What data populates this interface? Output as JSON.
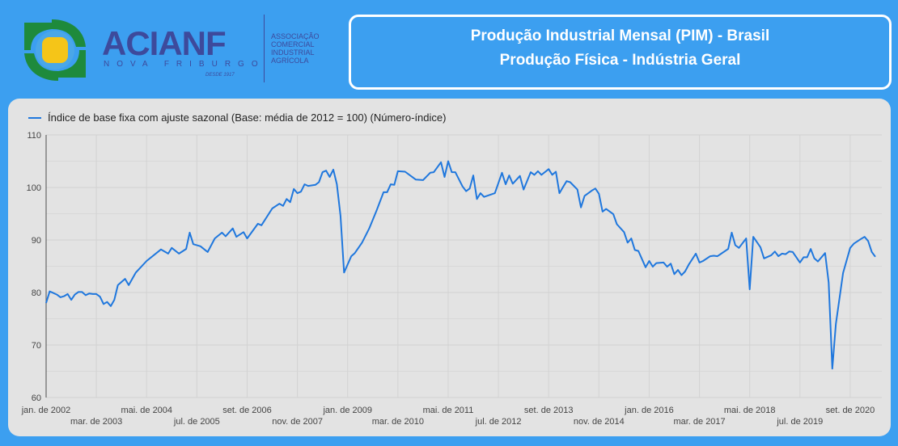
{
  "brand": {
    "name": "ACIANF",
    "city": "NOVA FRIBURGO",
    "since": "DESDE 1917",
    "tagline": [
      "ASSOCIAÇÃO",
      "COMERCIAL",
      "INDUSTRIAL",
      "AGRÍCOLA"
    ],
    "colors": {
      "green": "#1e8a3c",
      "yellow": "#f5c518",
      "navy": "#3d4a9c"
    }
  },
  "header": {
    "title_line1": "Produção Industrial Mensal (PIM) - Brasil",
    "title_line2": "Produção Física - Indústria Geral"
  },
  "chart_data": {
    "type": "line",
    "title": "",
    "legend": "Índice de base fixa com ajuste sazonal (Base: média de 2012 = 100) (Número-índice)",
    "legend_position": "top-left",
    "x_unit": "months since jan. de 2002",
    "xlim": [
      0,
      231
    ],
    "ylim": [
      60,
      110
    ],
    "y_ticks": [
      60,
      70,
      80,
      90,
      100,
      110
    ],
    "x_ticks": [
      {
        "x": 0,
        "label": "jan. de 2002"
      },
      {
        "x": 14,
        "label": "mar. de 2003"
      },
      {
        "x": 28,
        "label": "mai. de 2004"
      },
      {
        "x": 42,
        "label": "jul. de 2005"
      },
      {
        "x": 56,
        "label": "set. de 2006"
      },
      {
        "x": 70,
        "label": "nov. de 2007"
      },
      {
        "x": 84,
        "label": "jan. de 2009"
      },
      {
        "x": 98,
        "label": "mar. de 2010"
      },
      {
        "x": 112,
        "label": "mai. de 2011"
      },
      {
        "x": 126,
        "label": "jul. de 2012"
      },
      {
        "x": 140,
        "label": "set. de 2013"
      },
      {
        "x": 154,
        "label": "nov. de 2014"
      },
      {
        "x": 168,
        "label": "jan. de 2016"
      },
      {
        "x": 182,
        "label": "mar. de 2017"
      },
      {
        "x": 196,
        "label": "mai. de 2018"
      },
      {
        "x": 210,
        "label": "jul. de 2019"
      },
      {
        "x": 224,
        "label": "set. de 2020"
      }
    ],
    "grid": true,
    "color": "#1f77dd",
    "points": [
      [
        0,
        78
      ],
      [
        1,
        80.2
      ],
      [
        2,
        79.9
      ],
      [
        3,
        79.6
      ],
      [
        4,
        79.1
      ],
      [
        5,
        79.3
      ],
      [
        6,
        79.7
      ],
      [
        7,
        78.6
      ],
      [
        8,
        79.6
      ],
      [
        9,
        80.1
      ],
      [
        10,
        80.1
      ],
      [
        11,
        79.5
      ],
      [
        12,
        79.8
      ],
      [
        13,
        79.7
      ],
      [
        14,
        79.7
      ],
      [
        15,
        79.2
      ],
      [
        16,
        77.8
      ],
      [
        17,
        78.2
      ],
      [
        18,
        77.4
      ],
      [
        19,
        78.6
      ],
      [
        20,
        81.4
      ],
      [
        22,
        82.6
      ],
      [
        23,
        81.4
      ],
      [
        25,
        83.8
      ],
      [
        28,
        86
      ],
      [
        32,
        88.2
      ],
      [
        34,
        87.4
      ],
      [
        35,
        88.5
      ],
      [
        37,
        87.4
      ],
      [
        39,
        88.3
      ],
      [
        40,
        91.4
      ],
      [
        41,
        89.2
      ],
      [
        43,
        88.8
      ],
      [
        45,
        87.7
      ],
      [
        47,
        90.3
      ],
      [
        49,
        91.4
      ],
      [
        50,
        90.7
      ],
      [
        52,
        92.2
      ],
      [
        53,
        90.6
      ],
      [
        55,
        91.5
      ],
      [
        56,
        90.3
      ],
      [
        59,
        93.1
      ],
      [
        60,
        92.8
      ],
      [
        63,
        96
      ],
      [
        65,
        96.9
      ],
      [
        66,
        96.5
      ],
      [
        67,
        97.8
      ],
      [
        68,
        97.2
      ],
      [
        69,
        99.7
      ],
      [
        70,
        98.9
      ],
      [
        71,
        99.2
      ],
      [
        72,
        100.6
      ],
      [
        73,
        100.3
      ],
      [
        75,
        100.5
      ],
      [
        76,
        101
      ],
      [
        77,
        102.9
      ],
      [
        78,
        103.2
      ],
      [
        79,
        102
      ],
      [
        80,
        103.4
      ],
      [
        81,
        100.6
      ],
      [
        82,
        94.6
      ],
      [
        83,
        83.8
      ],
      [
        85,
        86.9
      ],
      [
        86,
        87.5
      ],
      [
        88,
        89.5
      ],
      [
        90,
        92.2
      ],
      [
        92,
        95.5
      ],
      [
        94,
        99.1
      ],
      [
        95,
        99.1
      ],
      [
        96,
        100.6
      ],
      [
        97,
        100.5
      ],
      [
        98,
        103.1
      ],
      [
        100,
        103
      ],
      [
        103,
        101.5
      ],
      [
        105,
        101.4
      ],
      [
        107,
        102.8
      ],
      [
        108,
        102.9
      ],
      [
        110,
        104.8
      ],
      [
        111,
        102
      ],
      [
        112,
        105
      ],
      [
        113,
        102.9
      ],
      [
        114,
        102.9
      ],
      [
        116,
        100.2
      ],
      [
        117,
        99.3
      ],
      [
        118,
        99.8
      ],
      [
        119,
        102.3
      ],
      [
        120,
        97.8
      ],
      [
        121,
        98.9
      ],
      [
        122,
        98.2
      ],
      [
        125,
        98.9
      ],
      [
        127,
        102.8
      ],
      [
        128,
        100.6
      ],
      [
        129,
        102.3
      ],
      [
        130,
        100.7
      ],
      [
        132,
        102.2
      ],
      [
        133,
        99.6
      ],
      [
        135,
        102.9
      ],
      [
        136,
        102.4
      ],
      [
        137,
        103.1
      ],
      [
        138,
        102.4
      ],
      [
        140,
        103.5
      ],
      [
        141,
        102.4
      ],
      [
        142,
        103
      ],
      [
        143,
        98.9
      ],
      [
        144,
        100.1
      ],
      [
        145,
        101.2
      ],
      [
        146,
        101
      ],
      [
        148,
        99.6
      ],
      [
        149,
        96.2
      ],
      [
        150,
        98.4
      ],
      [
        152,
        99.4
      ],
      [
        153,
        99.8
      ],
      [
        154,
        98.8
      ],
      [
        155,
        95.4
      ],
      [
        156,
        95.9
      ],
      [
        158,
        94.9
      ],
      [
        159,
        93
      ],
      [
        161,
        91.5
      ],
      [
        162,
        89.5
      ],
      [
        163,
        90.3
      ],
      [
        164,
        88.1
      ],
      [
        165,
        87.9
      ],
      [
        167,
        84.8
      ],
      [
        168,
        86
      ],
      [
        169,
        84.9
      ],
      [
        170,
        85.6
      ],
      [
        172,
        85.7
      ],
      [
        173,
        84.9
      ],
      [
        174,
        85.5
      ],
      [
        175,
        83.5
      ],
      [
        176,
        84.3
      ],
      [
        177,
        83.3
      ],
      [
        178,
        84
      ],
      [
        179,
        85.3
      ],
      [
        181,
        87.4
      ],
      [
        182,
        85.7
      ],
      [
        183,
        86
      ],
      [
        185,
        86.9
      ],
      [
        186,
        87
      ],
      [
        187,
        86.9
      ],
      [
        190,
        88.3
      ],
      [
        191,
        91.4
      ],
      [
        192,
        89
      ],
      [
        193,
        88.5
      ],
      [
        195,
        90.3
      ],
      [
        196,
        80.6
      ],
      [
        197,
        90.6
      ],
      [
        199,
        88.6
      ],
      [
        200,
        86.5
      ],
      [
        202,
        87.1
      ],
      [
        203,
        87.8
      ],
      [
        204,
        86.9
      ],
      [
        205,
        87.4
      ],
      [
        206,
        87.3
      ],
      [
        207,
        87.8
      ],
      [
        208,
        87.7
      ],
      [
        210,
        85.7
      ],
      [
        211,
        86.7
      ],
      [
        212,
        86.7
      ],
      [
        213,
        88.3
      ],
      [
        214,
        86.5
      ],
      [
        215,
        85.9
      ],
      [
        217,
        87.5
      ],
      [
        218,
        81.9
      ],
      [
        219,
        65.5
      ],
      [
        220,
        74
      ],
      [
        222,
        83.7
      ],
      [
        224,
        88.5
      ],
      [
        225,
        89.3
      ],
      [
        227,
        90.2
      ],
      [
        228,
        90.6
      ],
      [
        229,
        89.8
      ],
      [
        230,
        87.7
      ],
      [
        231,
        86.8
      ]
    ]
  }
}
